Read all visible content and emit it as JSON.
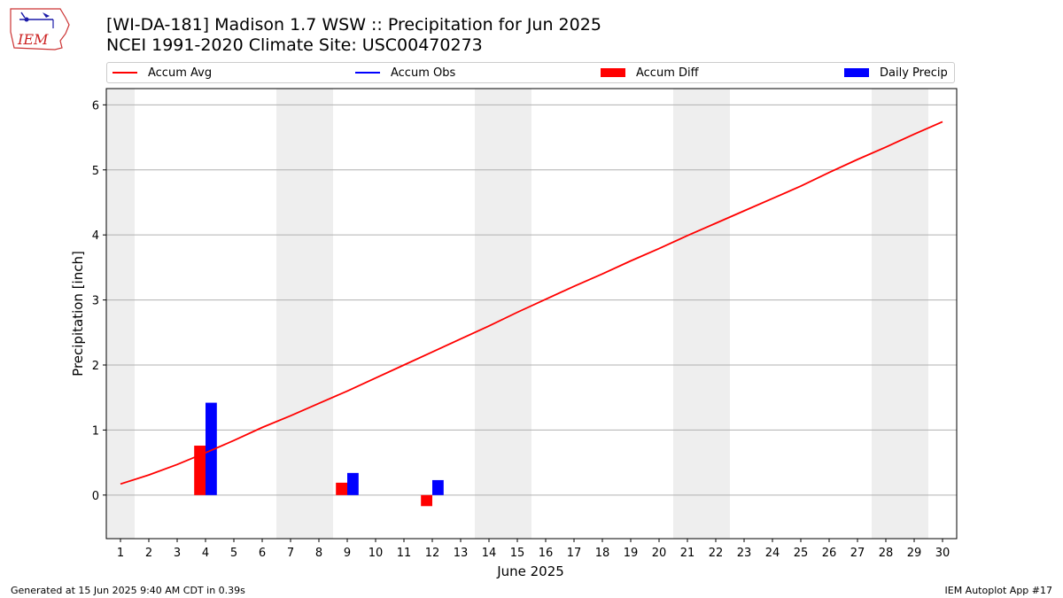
{
  "logo_text": "IEM",
  "title": {
    "line1": "[WI-DA-181] Madison 1.7 WSW :: Precipitation for Jun 2025",
    "line2": "NCEI 1991-2020 Climate Site: USC00470273"
  },
  "legend": [
    {
      "label": "Accum Avg",
      "color": "#ff0000",
      "kind": "line"
    },
    {
      "label": "Accum Obs",
      "color": "#0000ff",
      "kind": "line"
    },
    {
      "label": "Accum Diff",
      "color": "#ff0000",
      "kind": "rect"
    },
    {
      "label": "Daily Precip",
      "color": "#0000ff",
      "kind": "rect"
    }
  ],
  "footer": {
    "left": "Generated at 15 Jun 2025 9:40 AM CDT in 0.39s",
    "right": "IEM Autoplot App #17"
  },
  "chart_data": {
    "type": "bar",
    "xlabel": "June 2025",
    "ylabel": "Precipitation [inch]",
    "xlim": [
      0.5,
      30.5
    ],
    "ylim": [
      -0.67,
      6.25
    ],
    "yticks": [
      0,
      1,
      2,
      3,
      4,
      5,
      6
    ],
    "categories": [
      "1",
      "2",
      "3",
      "4",
      "5",
      "6",
      "7",
      "8",
      "9",
      "10",
      "11",
      "12",
      "13",
      "14",
      "15",
      "16",
      "17",
      "18",
      "19",
      "20",
      "21",
      "22",
      "23",
      "24",
      "25",
      "26",
      "27",
      "28",
      "29",
      "30"
    ],
    "weekend_shading": [
      [
        0.5,
        1.5
      ],
      [
        6.5,
        8.5
      ],
      [
        13.5,
        15.5
      ],
      [
        20.5,
        22.5
      ],
      [
        27.5,
        29.5
      ]
    ],
    "grid": "horizontal",
    "series": [
      {
        "name": "Accum Avg",
        "type": "line",
        "color": "#ff0000",
        "values": [
          0.17,
          0.31,
          0.47,
          0.65,
          0.84,
          1.04,
          1.22,
          1.41,
          1.6,
          1.8,
          2.0,
          2.2,
          2.4,
          2.6,
          2.81,
          3.01,
          3.21,
          3.4,
          3.6,
          3.79,
          3.99,
          4.18,
          4.37,
          4.56,
          4.75,
          4.96,
          5.16,
          5.35,
          5.55,
          5.74
        ]
      },
      {
        "name": "Accum Diff",
        "type": "bar",
        "color": "#ff0000",
        "offset": -0.2,
        "points": [
          {
            "x": 4,
            "y": 0.76
          },
          {
            "x": 9,
            "y": 0.19
          },
          {
            "x": 12,
            "y": -0.17
          }
        ]
      },
      {
        "name": "Daily Precip",
        "type": "bar",
        "color": "#0000ff",
        "offset": 0.2,
        "points": [
          {
            "x": 4,
            "y": 1.42
          },
          {
            "x": 9,
            "y": 0.34
          },
          {
            "x": 12,
            "y": 0.23
          }
        ]
      }
    ]
  }
}
